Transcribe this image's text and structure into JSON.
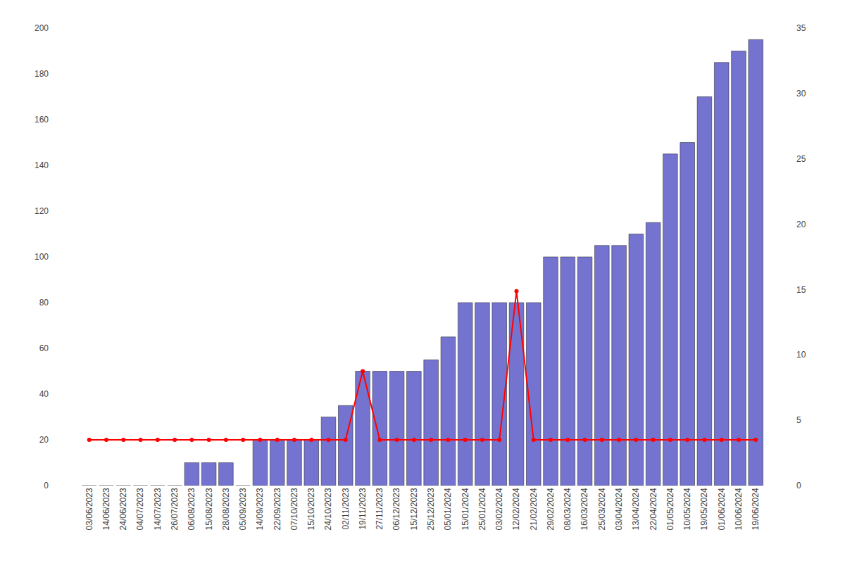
{
  "chart_data": {
    "type": "bar",
    "categories": [
      "03/06/2023",
      "14/06/2023",
      "24/06/2023",
      "04/07/2023",
      "14/07/2023",
      "26/07/2023",
      "06/08/2023",
      "15/08/2023",
      "28/08/2023",
      "05/09/2023",
      "14/09/2023",
      "22/09/2023",
      "07/10/2023",
      "15/10/2023",
      "24/10/2023",
      "02/11/2023",
      "19/11/2023",
      "27/11/2023",
      "06/12/2023",
      "15/12/2023",
      "25/12/2023",
      "05/01/2024",
      "15/01/2024",
      "25/01/2024",
      "03/02/2024",
      "12/02/2024",
      "21/02/2024",
      "29/02/2024",
      "08/03/2024",
      "16/03/2024",
      "25/03/2024",
      "03/04/2024",
      "13/04/2024",
      "22/04/2024",
      "01/05/2024",
      "10/05/2024",
      "19/05/2024",
      "01/06/2024",
      "10/06/2024",
      "19/06/2024"
    ],
    "series": [
      {
        "type": "bar",
        "color": "#6666cc",
        "values": [
          0,
          0,
          0,
          0,
          0,
          0,
          10,
          10,
          10,
          0,
          20,
          20,
          20,
          20,
          30,
          35,
          50,
          50,
          50,
          50,
          55,
          65,
          80,
          80,
          80,
          80,
          80,
          100,
          100,
          100,
          105,
          105,
          110,
          115,
          145,
          150,
          170,
          185,
          190,
          195
        ]
      },
      {
        "type": "line",
        "color": "#ff0000",
        "marker": "circle",
        "values": [
          20,
          20,
          20,
          20,
          20,
          20,
          20,
          20,
          20,
          20,
          20,
          20,
          20,
          20,
          20,
          20,
          50,
          20,
          20,
          20,
          20,
          20,
          20,
          20,
          20,
          85,
          20,
          20,
          20,
          20,
          20,
          20,
          20,
          20,
          20,
          20,
          20,
          20,
          20,
          20
        ]
      }
    ],
    "ylim": [
      0,
      200
    ],
    "yticks": [
      0,
      20,
      40,
      60,
      80,
      100,
      120,
      140,
      160,
      180,
      200
    ],
    "y2lim": [
      0,
      35
    ],
    "y2ticks": [
      0,
      5,
      10,
      15,
      20,
      25,
      30,
      35
    ],
    "grid": false
  }
}
